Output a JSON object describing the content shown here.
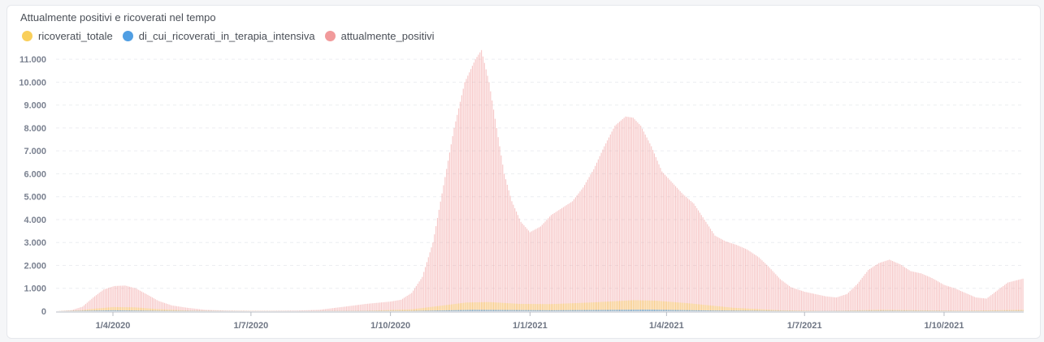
{
  "chart_data": {
    "type": "bar",
    "title": "Attualmente positivi e ricoverati nel tempo",
    "xlabel": "",
    "ylabel": "",
    "ylim": [
      0,
      11500
    ],
    "yticks": [
      0,
      1000,
      2000,
      3000,
      4000,
      5000,
      6000,
      7000,
      8000,
      9000,
      10000,
      11000
    ],
    "ytick_labels": [
      "0",
      "1.000",
      "2.000",
      "3.000",
      "4.000",
      "5.000",
      "6.000",
      "7.000",
      "8.000",
      "9.000",
      "10.000",
      "11.000"
    ],
    "x_start": "2020-02-24",
    "x_end": "2021-11-22",
    "xticks": [
      "2020-04-01",
      "2020-07-01",
      "2020-10-01",
      "2021-01-01",
      "2021-04-01",
      "2021-07-01",
      "2021-10-01"
    ],
    "xtick_labels": [
      "1/4/2020",
      "1/7/2020",
      "1/10/2020",
      "1/1/2021",
      "1/4/2021",
      "1/7/2021",
      "1/10/2021"
    ],
    "grid": "horizontal dashed",
    "legend_position": "top-left",
    "series": [
      {
        "name": "attualmente_positivi",
        "color": "#f19a9b",
        "points": [
          [
            "2020-02-24",
            0
          ],
          [
            "2020-03-05",
            50
          ],
          [
            "2020-03-12",
            200
          ],
          [
            "2020-03-19",
            600
          ],
          [
            "2020-03-26",
            950
          ],
          [
            "2020-04-02",
            1100
          ],
          [
            "2020-04-09",
            1120
          ],
          [
            "2020-04-16",
            1000
          ],
          [
            "2020-04-23",
            750
          ],
          [
            "2020-05-01",
            450
          ],
          [
            "2020-05-10",
            250
          ],
          [
            "2020-05-20",
            150
          ],
          [
            "2020-06-01",
            60
          ],
          [
            "2020-06-15",
            30
          ],
          [
            "2020-07-01",
            20
          ],
          [
            "2020-07-15",
            20
          ],
          [
            "2020-08-01",
            30
          ],
          [
            "2020-08-15",
            60
          ],
          [
            "2020-09-01",
            200
          ],
          [
            "2020-09-15",
            320
          ],
          [
            "2020-10-01",
            420
          ],
          [
            "2020-10-08",
            500
          ],
          [
            "2020-10-15",
            800
          ],
          [
            "2020-10-22",
            1500
          ],
          [
            "2020-10-29",
            3000
          ],
          [
            "2020-11-05",
            5500
          ],
          [
            "2020-11-12",
            8000
          ],
          [
            "2020-11-19",
            10000
          ],
          [
            "2020-11-26",
            11000
          ],
          [
            "2020-11-30",
            11400
          ],
          [
            "2020-12-05",
            10000
          ],
          [
            "2020-12-10",
            8000
          ],
          [
            "2020-12-15",
            6000
          ],
          [
            "2020-12-20",
            4800
          ],
          [
            "2020-12-26",
            3900
          ],
          [
            "2021-01-01",
            3450
          ],
          [
            "2021-01-08",
            3700
          ],
          [
            "2021-01-15",
            4200
          ],
          [
            "2021-01-22",
            4500
          ],
          [
            "2021-01-29",
            4800
          ],
          [
            "2021-02-05",
            5400
          ],
          [
            "2021-02-12",
            6200
          ],
          [
            "2021-02-19",
            7200
          ],
          [
            "2021-02-26",
            8100
          ],
          [
            "2021-03-05",
            8500
          ],
          [
            "2021-03-10",
            8450
          ],
          [
            "2021-03-15",
            8100
          ],
          [
            "2021-03-22",
            7200
          ],
          [
            "2021-03-29",
            6100
          ],
          [
            "2021-04-05",
            5600
          ],
          [
            "2021-04-12",
            5100
          ],
          [
            "2021-04-19",
            4700
          ],
          [
            "2021-04-26",
            4000
          ],
          [
            "2021-05-03",
            3300
          ],
          [
            "2021-05-10",
            3050
          ],
          [
            "2021-05-17",
            2900
          ],
          [
            "2021-05-24",
            2700
          ],
          [
            "2021-06-01",
            2350
          ],
          [
            "2021-06-08",
            1900
          ],
          [
            "2021-06-15",
            1400
          ],
          [
            "2021-06-22",
            1050
          ],
          [
            "2021-07-01",
            850
          ],
          [
            "2021-07-08",
            750
          ],
          [
            "2021-07-15",
            650
          ],
          [
            "2021-07-22",
            600
          ],
          [
            "2021-07-29",
            750
          ],
          [
            "2021-08-05",
            1200
          ],
          [
            "2021-08-12",
            1800
          ],
          [
            "2021-08-19",
            2100
          ],
          [
            "2021-08-26",
            2250
          ],
          [
            "2021-09-02",
            2050
          ],
          [
            "2021-09-09",
            1750
          ],
          [
            "2021-09-16",
            1650
          ],
          [
            "2021-09-23",
            1450
          ],
          [
            "2021-10-01",
            1150
          ],
          [
            "2021-10-08",
            1000
          ],
          [
            "2021-10-15",
            800
          ],
          [
            "2021-10-22",
            600
          ],
          [
            "2021-10-29",
            550
          ],
          [
            "2021-11-05",
            900
          ],
          [
            "2021-11-12",
            1250
          ],
          [
            "2021-11-22",
            1420
          ]
        ]
      },
      {
        "name": "ricoverati_totale",
        "color": "#f9cf5a",
        "points": [
          [
            "2020-02-24",
            0
          ],
          [
            "2020-03-10",
            40
          ],
          [
            "2020-03-20",
            110
          ],
          [
            "2020-04-01",
            180
          ],
          [
            "2020-04-15",
            170
          ],
          [
            "2020-05-01",
            90
          ],
          [
            "2020-05-20",
            30
          ],
          [
            "2020-06-15",
            10
          ],
          [
            "2020-08-01",
            5
          ],
          [
            "2020-09-15",
            20
          ],
          [
            "2020-10-15",
            80
          ],
          [
            "2020-11-01",
            220
          ],
          [
            "2020-11-20",
            380
          ],
          [
            "2020-12-05",
            400
          ],
          [
            "2020-12-25",
            320
          ],
          [
            "2021-01-15",
            310
          ],
          [
            "2021-02-10",
            380
          ],
          [
            "2021-03-10",
            480
          ],
          [
            "2021-03-25",
            460
          ],
          [
            "2021-04-15",
            350
          ],
          [
            "2021-05-15",
            150
          ],
          [
            "2021-06-15",
            40
          ],
          [
            "2021-07-15",
            10
          ],
          [
            "2021-08-20",
            60
          ],
          [
            "2021-09-15",
            40
          ],
          [
            "2021-10-15",
            20
          ],
          [
            "2021-11-22",
            60
          ]
        ]
      },
      {
        "name": "di_cui_ricoverati_in_terapia_intensiva",
        "color": "#509ee3",
        "points": [
          [
            "2020-02-24",
            0
          ],
          [
            "2020-04-01",
            40
          ],
          [
            "2020-05-01",
            15
          ],
          [
            "2020-07-01",
            2
          ],
          [
            "2020-10-15",
            10
          ],
          [
            "2020-11-25",
            60
          ],
          [
            "2021-01-15",
            40
          ],
          [
            "2021-03-20",
            70
          ],
          [
            "2021-05-01",
            30
          ],
          [
            "2021-07-01",
            5
          ],
          [
            "2021-08-25",
            15
          ],
          [
            "2021-10-15",
            5
          ],
          [
            "2021-11-22",
            10
          ]
        ]
      }
    ]
  }
}
